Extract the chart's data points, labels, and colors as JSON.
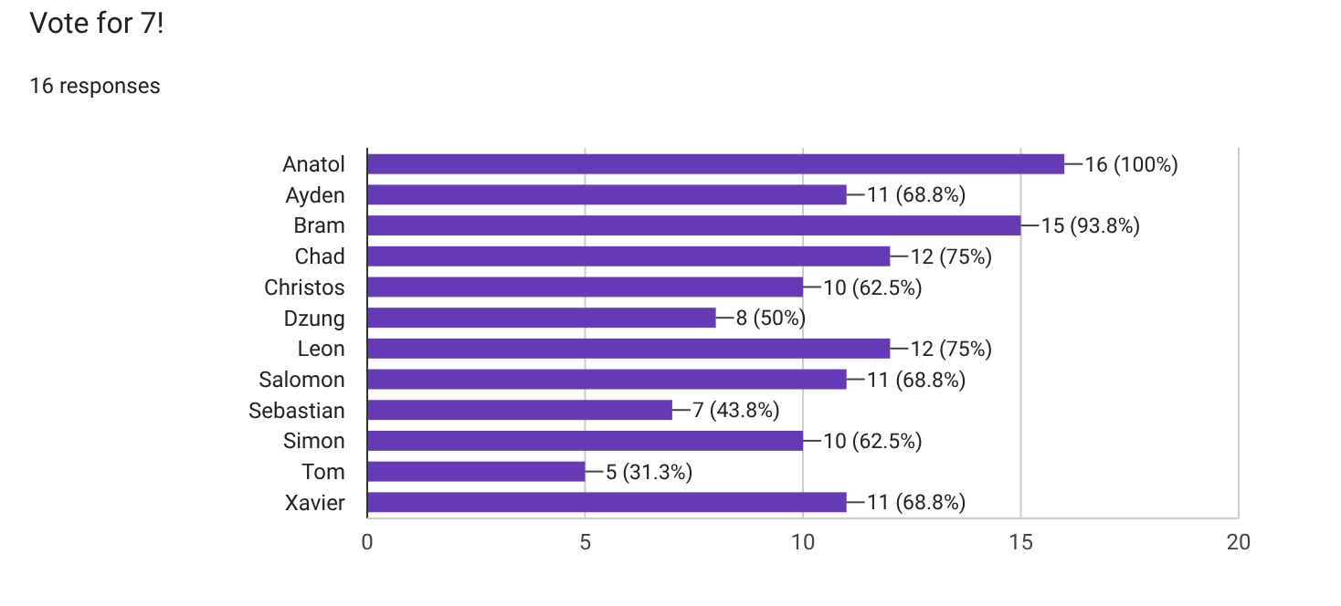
{
  "chart_data": {
    "type": "bar",
    "orientation": "horizontal",
    "title": "Vote for 7!",
    "subtitle": "16 responses",
    "categories": [
      "Anatol",
      "Ayden",
      "Bram",
      "Chad",
      "Christos",
      "Dzung",
      "Leon",
      "Salomon",
      "Sebastian",
      "Simon",
      "Tom",
      "Xavier"
    ],
    "values": [
      16,
      11,
      15,
      12,
      10,
      8,
      12,
      11,
      7,
      10,
      5,
      11
    ],
    "value_labels": [
      "16 (100%)",
      "11 (68.8%)",
      "15 (93.8%)",
      "12 (75%)",
      "10 (62.5%)",
      "8 (50%)",
      "12 (75%)",
      "11 (68.8%)",
      "7 (43.8%)",
      "10 (62.5%)",
      "5 (31.3%)",
      "11 (68.8%)"
    ],
    "color": "#673ab7",
    "xlim": [
      0,
      20
    ],
    "xticks": [
      0,
      5,
      10,
      15,
      20
    ],
    "grid": "x"
  }
}
